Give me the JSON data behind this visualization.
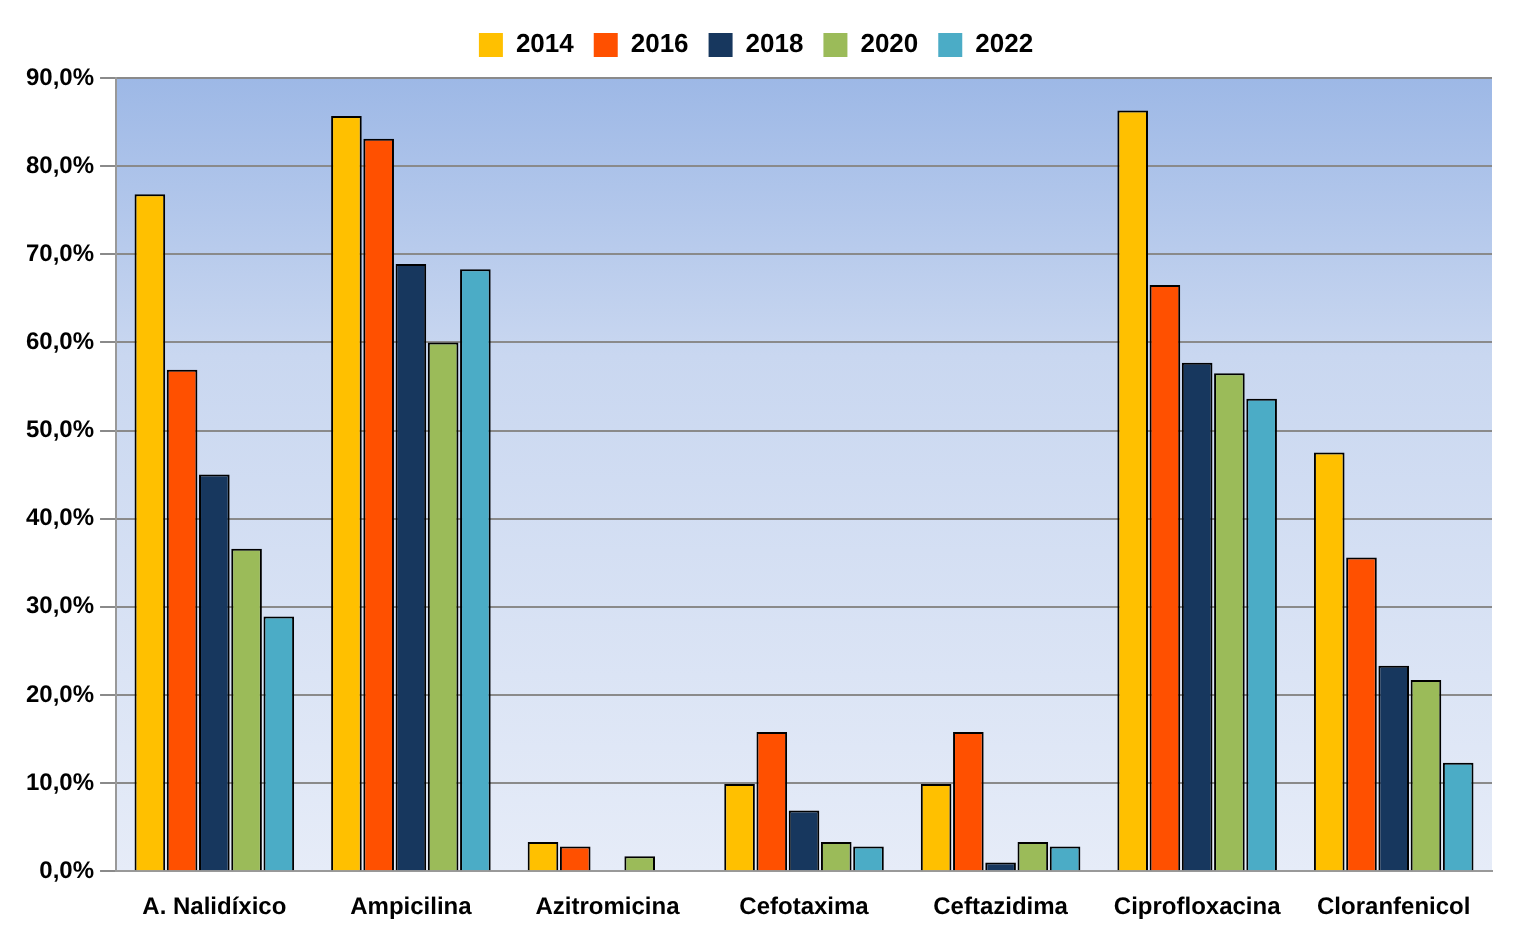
{
  "chart_data": {
    "type": "bar",
    "categories": [
      "A. Nalidíxico",
      "Ampicilina",
      "Azitromicina",
      "Cefotaxima",
      "Ceftazidima",
      "Ciprofloxacina",
      "Cloranfenicol"
    ],
    "series": [
      {
        "name": "2014",
        "color": "#ffc000",
        "values": [
          76.8,
          85.7,
          3.3,
          9.9,
          9.9,
          86.3,
          47.5
        ]
      },
      {
        "name": "2016",
        "color": "#ff5000",
        "values": [
          56.9,
          83.1,
          2.8,
          15.8,
          15.8,
          66.5,
          35.6
        ]
      },
      {
        "name": "2018",
        "color": "#17375e",
        "values": [
          45.0,
          68.9,
          0,
          6.9,
          1.0,
          57.7,
          23.3
        ]
      },
      {
        "name": "2020",
        "color": "#9bbb59",
        "values": [
          36.6,
          60.0,
          1.7,
          3.3,
          3.3,
          56.5,
          21.7
        ]
      },
      {
        "name": "2022",
        "color": "#4bacc6",
        "values": [
          28.9,
          68.3,
          0,
          2.8,
          2.8,
          53.6,
          12.3
        ]
      }
    ],
    "ylim": [
      0,
      90
    ],
    "yticks": [
      {
        "value": 0,
        "label": "0,0%"
      },
      {
        "value": 10,
        "label": "10,0%"
      },
      {
        "value": 20,
        "label": "20,0%"
      },
      {
        "value": 30,
        "label": "30,0%"
      },
      {
        "value": 40,
        "label": "40,0%"
      },
      {
        "value": 50,
        "label": "50,0%"
      },
      {
        "value": 60,
        "label": "60,0%"
      },
      {
        "value": 70,
        "label": "70,0%"
      },
      {
        "value": 80,
        "label": "80,0%"
      },
      {
        "value": 90,
        "label": "90,0%"
      }
    ],
    "grid": "y",
    "legend": "top"
  }
}
